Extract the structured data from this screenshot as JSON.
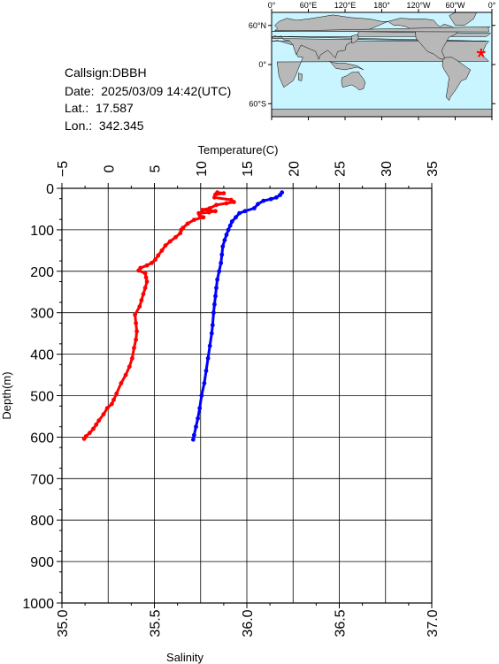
{
  "info": {
    "callsign": "Callsign:DBBH",
    "date": "Date:  2025/03/09 14:42(UTC)",
    "lat": "Lat.:  17.587",
    "lon": "Lon.:  342.345"
  },
  "map": {
    "lon_labels": [
      "0°",
      "60°E",
      "120°E",
      "180°",
      "120°W",
      "60°W",
      "0°"
    ],
    "lat_labels": [
      "60°N",
      "0°",
      "60°S"
    ],
    "ocean_color": "#c8f5ff",
    "land_color": "#b8b8b8",
    "marker_color": "#ff0000",
    "station": {
      "lat": 17.587,
      "lon": 342.345
    }
  },
  "chart_data": {
    "type": "scatter",
    "ylabel": "Depth(m)",
    "ylim": [
      1000,
      0
    ],
    "yticks": [
      "0",
      "100",
      "200",
      "300",
      "400",
      "500",
      "600",
      "700",
      "800",
      "900",
      "1000"
    ],
    "top_axis": {
      "label": "Temperature(C)",
      "range": [
        -5,
        35
      ],
      "ticks": [
        "−5",
        "0",
        "5",
        "10",
        "15",
        "20",
        "25",
        "30",
        "35"
      ]
    },
    "bottom_axis": {
      "label": "Salinity",
      "range": [
        35.0,
        37.0
      ],
      "ticks": [
        "35.0",
        "35.5",
        "36.0",
        "36.5",
        "37.0"
      ]
    },
    "grid": true,
    "series": [
      {
        "color": "#ff0000",
        "axis": "top",
        "points": [
          [
            11.8,
            10
          ],
          [
            12.5,
            12
          ],
          [
            11.6,
            15
          ],
          [
            11.5,
            22
          ],
          [
            13.3,
            28
          ],
          [
            13.6,
            33
          ],
          [
            12.8,
            36
          ],
          [
            11.7,
            40
          ],
          [
            11.0,
            48
          ],
          [
            10.2,
            52
          ],
          [
            11.6,
            55
          ],
          [
            10.9,
            58
          ],
          [
            9.8,
            60
          ],
          [
            9.9,
            65
          ],
          [
            10.3,
            70
          ],
          [
            9.3,
            76
          ],
          [
            8.6,
            85
          ],
          [
            8.1,
            95
          ],
          [
            7.9,
            100
          ],
          [
            7.8,
            108
          ],
          [
            7.3,
            118
          ],
          [
            6.7,
            128
          ],
          [
            6.2,
            138
          ],
          [
            5.8,
            150
          ],
          [
            5.4,
            162
          ],
          [
            5.1,
            172
          ],
          [
            4.7,
            180
          ],
          [
            4.2,
            186
          ],
          [
            3.5,
            192
          ],
          [
            3.3,
            198
          ],
          [
            4.0,
            205
          ],
          [
            4.1,
            215
          ],
          [
            4.2,
            225
          ],
          [
            4.0,
            240
          ],
          [
            3.8,
            255
          ],
          [
            3.6,
            270
          ],
          [
            3.4,
            285
          ],
          [
            2.9,
            305
          ],
          [
            3.0,
            325
          ],
          [
            3.1,
            345
          ],
          [
            3.0,
            365
          ],
          [
            2.8,
            385
          ],
          [
            2.6,
            410
          ],
          [
            2.3,
            430
          ],
          [
            1.9,
            450
          ],
          [
            1.4,
            470
          ],
          [
            0.9,
            495
          ],
          [
            0.6,
            510
          ],
          [
            0.4,
            520
          ],
          [
            -0.1,
            530
          ],
          [
            -0.5,
            545
          ],
          [
            -1.0,
            560
          ],
          [
            -1.3,
            570
          ],
          [
            -1.6,
            580
          ],
          [
            -2.0,
            590
          ],
          [
            -2.4,
            598
          ],
          [
            -2.6,
            604
          ]
        ]
      },
      {
        "color": "#0000ff",
        "axis": "bottom",
        "points": [
          [
            36.19,
            10
          ],
          [
            36.18,
            16
          ],
          [
            36.16,
            22
          ],
          [
            36.13,
            26
          ],
          [
            36.09,
            30
          ],
          [
            36.06,
            38
          ],
          [
            36.04,
            48
          ],
          [
            35.99,
            55
          ],
          [
            35.96,
            60
          ],
          [
            35.94,
            70
          ],
          [
            35.92,
            80
          ],
          [
            35.91,
            90
          ],
          [
            35.9,
            100
          ],
          [
            35.89,
            112
          ],
          [
            35.88,
            125
          ],
          [
            35.87,
            140
          ],
          [
            35.865,
            160
          ],
          [
            35.86,
            180
          ],
          [
            35.85,
            200
          ],
          [
            35.84,
            220
          ],
          [
            35.835,
            240
          ],
          [
            35.83,
            260
          ],
          [
            35.825,
            280
          ],
          [
            35.82,
            300
          ],
          [
            35.815,
            330
          ],
          [
            35.81,
            350
          ],
          [
            35.8,
            380
          ],
          [
            35.79,
            410
          ],
          [
            35.78,
            440
          ],
          [
            35.77,
            470
          ],
          [
            35.755,
            500
          ],
          [
            35.745,
            530
          ],
          [
            35.735,
            555
          ],
          [
            35.725,
            575
          ],
          [
            35.715,
            595
          ],
          [
            35.71,
            606
          ]
        ]
      }
    ]
  }
}
